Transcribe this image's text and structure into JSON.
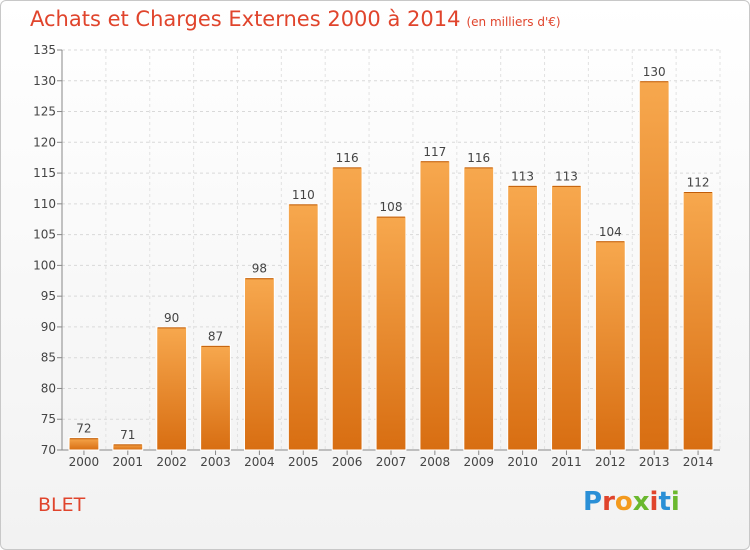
{
  "header": {
    "title": "Achats et Charges Externes 2000 à 2014",
    "subtitle": "(en milliers d'€)"
  },
  "footer": {
    "commune": "BLET",
    "brand": "Proxiti",
    "brand_colors": [
      "#2a8fd6",
      "#e0442c",
      "#f39a1e",
      "#6ab82e",
      "#e0442c",
      "#2a8fd6",
      "#6ab82e"
    ]
  },
  "chart_data": {
    "type": "bar",
    "categories": [
      "2000",
      "2001",
      "2002",
      "2003",
      "2004",
      "2005",
      "2006",
      "2007",
      "2008",
      "2009",
      "2010",
      "2011",
      "2012",
      "2013",
      "2014"
    ],
    "values": [
      72,
      71,
      90,
      87,
      98,
      110,
      116,
      108,
      117,
      116,
      113,
      113,
      104,
      130,
      112
    ],
    "ylim": [
      70,
      135
    ],
    "yticks": [
      70,
      75,
      80,
      85,
      90,
      95,
      100,
      105,
      110,
      115,
      120,
      125,
      130,
      135
    ],
    "grid": true,
    "bar_color": "#f0922e"
  }
}
